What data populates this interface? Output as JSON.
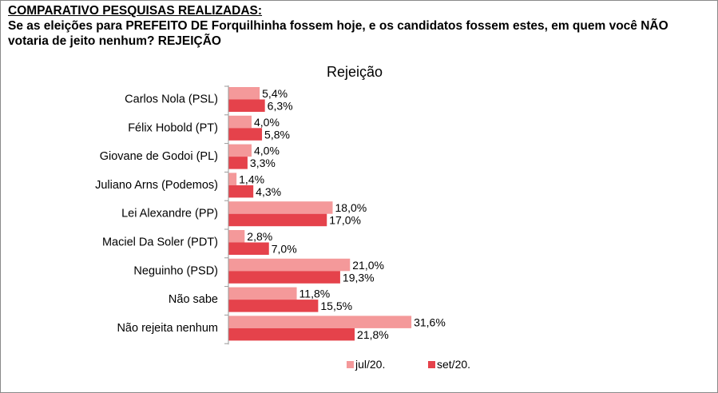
{
  "header": {
    "title": "COMPARATIVO PESQUISAS REALIZADAS:",
    "question": "Se as eleições para PREFEITO DE Forquilhinha fossem hoje, e os candidatos fossem estes, em quem você NÃO votaria de jeito nenhum? REJEIÇÃO"
  },
  "chart_data": {
    "type": "bar",
    "orientation": "horizontal",
    "title": "Rejeição",
    "xlabel": "",
    "ylabel": "",
    "xlim": [
      0,
      40
    ],
    "grid": false,
    "legend_position": "bottom",
    "categories": [
      "Carlos Nola (PSL)",
      "Félix Hobold (PT)",
      "Giovane de Godoi (PL)",
      "Juliano Arns (Podemos)",
      "Lei Alexandre (PP)",
      "Maciel Da Soler (PDT)",
      "Neguinho (PSD)",
      "Não sabe",
      "Não rejeita nenhum"
    ],
    "series": [
      {
        "name": "jul/20.",
        "color": "#f4999a",
        "values": [
          5.4,
          4.0,
          4.0,
          1.4,
          18.0,
          2.8,
          21.0,
          11.8,
          31.6
        ],
        "labels": [
          "5,4%",
          "4,0%",
          "4,0%",
          "1,4%",
          "18,0%",
          "2,8%",
          "21,0%",
          "11,8%",
          "31,6%"
        ]
      },
      {
        "name": "set/20.",
        "color": "#e5424b",
        "values": [
          6.3,
          5.8,
          3.3,
          4.3,
          17.0,
          7.0,
          19.3,
          15.5,
          21.8
        ],
        "labels": [
          "6,3%",
          "5,8%",
          "3,3%",
          "4,3%",
          "17,0%",
          "7,0%",
          "19,3%",
          "15,5%",
          "21,8%"
        ]
      }
    ]
  }
}
